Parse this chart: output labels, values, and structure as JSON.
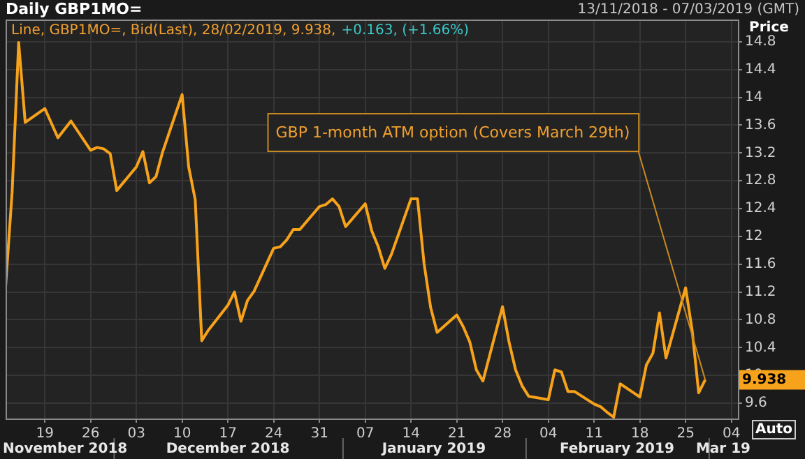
{
  "chart_data": {
    "type": "line",
    "title": "Daily GBP1MO=",
    "subtitle": "13/11/2018 - 07/03/2019 (GMT)",
    "ylabel": "Price",
    "x": [
      "2018-11-13",
      "2018-11-14",
      "2018-11-15",
      "2018-11-16",
      "2018-11-19",
      "2018-11-20",
      "2018-11-21",
      "2018-11-22",
      "2018-11-23",
      "2018-11-26",
      "2018-11-27",
      "2018-11-28",
      "2018-11-29",
      "2018-11-30",
      "2018-12-03",
      "2018-12-04",
      "2018-12-05",
      "2018-12-06",
      "2018-12-07",
      "2018-12-10",
      "2018-12-11",
      "2018-12-12",
      "2018-12-13",
      "2018-12-14",
      "2018-12-17",
      "2018-12-18",
      "2018-12-19",
      "2018-12-20",
      "2018-12-21",
      "2018-12-24",
      "2018-12-25",
      "2018-12-26",
      "2018-12-27",
      "2018-12-28",
      "2018-12-31",
      "2019-01-01",
      "2019-01-02",
      "2019-01-03",
      "2019-01-04",
      "2019-01-07",
      "2019-01-08",
      "2019-01-09",
      "2019-01-10",
      "2019-01-11",
      "2019-01-14",
      "2019-01-15",
      "2019-01-16",
      "2019-01-17",
      "2019-01-18",
      "2019-01-21",
      "2019-01-22",
      "2019-01-23",
      "2019-01-24",
      "2019-01-25",
      "2019-01-28",
      "2019-01-29",
      "2019-01-30",
      "2019-01-31",
      "2019-02-01",
      "2019-02-04",
      "2019-02-05",
      "2019-02-06",
      "2019-02-07",
      "2019-02-08",
      "2019-02-11",
      "2019-02-12",
      "2019-02-13",
      "2019-02-14",
      "2019-02-15",
      "2019-02-18",
      "2019-02-19",
      "2019-02-20",
      "2019-02-21",
      "2019-02-22",
      "2019-02-25",
      "2019-02-26",
      "2019-02-27",
      "2019-02-28"
    ],
    "series": [
      {
        "color": "#f7a21b",
        "values": [
          11.28,
          12.64,
          14.79,
          13.64,
          13.84,
          13.63,
          13.42,
          13.54,
          13.66,
          13.24,
          13.28,
          13.26,
          13.19,
          12.66,
          13.0,
          13.22,
          12.77,
          12.86,
          13.21,
          14.04,
          13.0,
          12.53,
          10.5,
          10.65,
          11.01,
          11.2,
          10.78,
          11.08,
          11.21,
          11.83,
          11.85,
          11.95,
          12.1,
          12.1,
          12.43,
          12.46,
          12.54,
          12.43,
          12.14,
          12.47,
          12.08,
          11.85,
          11.54,
          11.74,
          12.54,
          12.54,
          11.61,
          10.98,
          10.62,
          10.87,
          10.7,
          10.48,
          10.08,
          9.92,
          10.99,
          10.48,
          10.08,
          9.85,
          9.7,
          9.65,
          10.08,
          10.05,
          9.77,
          9.77,
          9.59,
          9.55,
          9.47,
          9.4,
          9.88,
          9.69,
          10.15,
          10.32,
          10.9,
          10.25,
          11.26,
          10.65,
          9.75,
          9.938
        ]
      }
    ],
    "xlim": [
      "2018-11-13",
      "2019-03-05"
    ],
    "xticks": [
      {
        "value": "2018-11-19",
        "label": "19"
      },
      {
        "value": "2018-11-26",
        "label": "26"
      },
      {
        "value": "2018-12-03",
        "label": "03"
      },
      {
        "value": "2018-12-10",
        "label": "10"
      },
      {
        "value": "2018-12-17",
        "label": "17"
      },
      {
        "value": "2018-12-24",
        "label": "24"
      },
      {
        "value": "2018-12-31",
        "label": "31"
      },
      {
        "value": "2019-01-07",
        "label": "07"
      },
      {
        "value": "2019-01-14",
        "label": "14"
      },
      {
        "value": "2019-01-21",
        "label": "21"
      },
      {
        "value": "2019-01-28",
        "label": "28"
      },
      {
        "value": "2019-02-04",
        "label": "04"
      },
      {
        "value": "2019-02-11",
        "label": "11"
      },
      {
        "value": "2019-02-18",
        "label": "18"
      },
      {
        "value": "2019-02-25",
        "label": "25"
      },
      {
        "value": "2019-03-04",
        "label": "04"
      }
    ],
    "ylim": [
      9.38,
      15.12
    ],
    "yticks": [
      9.6,
      10,
      10.4,
      10.8,
      11.2,
      11.6,
      12,
      12.4,
      12.8,
      13.2,
      13.6,
      14,
      14.4,
      14.8
    ],
    "grid": true,
    "legend": false,
    "annotations": [
      "Line, GBP1MO=, Bid(Last), 28/02/2019, 9.938,",
      "+0.163, (+1.66%)",
      "Auto",
      {
        "text": "GBP 1-month ATM option (Covers March 29th)",
        "x": "2019-02-28",
        "y": 9.938
      },
      "9.938",
      "November 2018",
      "December 2018",
      "January 2019",
      "February 2019",
      "Mar 19"
    ]
  }
}
